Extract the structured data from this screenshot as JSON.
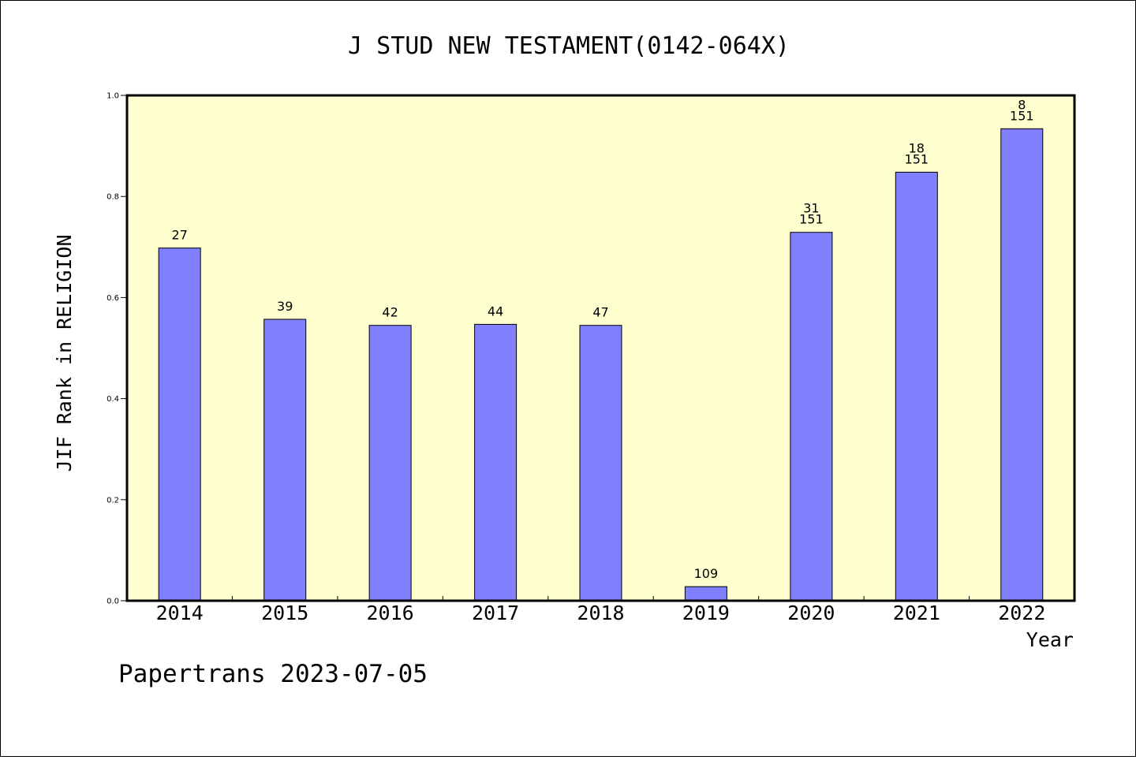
{
  "chart_data": {
    "type": "bar",
    "title": "J STUD NEW TESTAMENT(0142-064X)",
    "xlabel": "Year",
    "ylabel": "JIF Rank in RELIGION",
    "ylim": [
      0,
      1.0
    ],
    "yticks": [
      "0.0",
      "0.2",
      "0.4",
      "0.6",
      "0.8",
      "1.0"
    ],
    "categories": [
      "2014",
      "2015",
      "2016",
      "2017",
      "2018",
      "2019",
      "2020",
      "2021",
      "2022"
    ],
    "values": [
      0.698,
      0.557,
      0.545,
      0.547,
      0.545,
      0.028,
      0.729,
      0.848,
      0.934
    ],
    "labels": [
      [
        "27"
      ],
      [
        "39"
      ],
      [
        "42"
      ],
      [
        "44"
      ],
      [
        "47"
      ],
      [
        "109"
      ],
      [
        "31",
        "151"
      ],
      [
        "18",
        "151"
      ],
      [
        "8",
        "151"
      ]
    ],
    "grid": false,
    "colors": {
      "plot_background": "#ffffd0",
      "bar_fill": "#8080ff",
      "bar_stroke": "#000000"
    }
  },
  "footer": {
    "text": "Papertrans 2023-07-05"
  }
}
